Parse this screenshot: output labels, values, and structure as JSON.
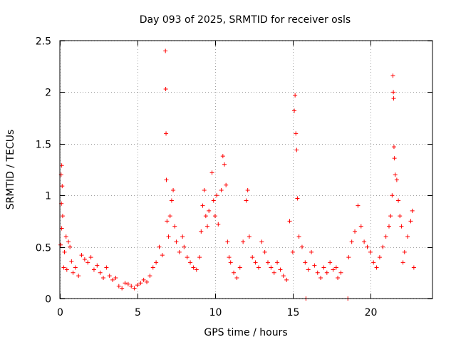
{
  "chart_data": {
    "type": "scatter",
    "title": "Day 093 of 2025, SRMTID for receiver osls",
    "xlabel": "GPS time / hours",
    "ylabel": "SRMTID / TECUs",
    "xlim": [
      0,
      24
    ],
    "ylim": [
      0,
      2.5
    ],
    "x_ticks": [
      0,
      5,
      10,
      15,
      20
    ],
    "x_tick_labels": [
      "0",
      "5",
      "10",
      "15",
      "20"
    ],
    "y_ticks": [
      0,
      0.5,
      1,
      1.5,
      2,
      2.5
    ],
    "y_tick_labels": [
      "0",
      "0.5",
      "1",
      "1.5",
      "2",
      "2.5"
    ],
    "grid": true,
    "marker": "+",
    "marker_color": "#ff0000",
    "series": [
      {
        "name": "SRMTID",
        "points": [
          [
            0.05,
            0.52
          ],
          [
            0.08,
            1.2
          ],
          [
            0.12,
            1.29
          ],
          [
            0.15,
            1.09
          ],
          [
            0.1,
            0.92
          ],
          [
            0.18,
            0.8
          ],
          [
            0.12,
            0.68
          ],
          [
            0.25,
            0.3
          ],
          [
            0.3,
            0.45
          ],
          [
            0.4,
            0.6
          ],
          [
            0.45,
            0.28
          ],
          [
            0.55,
            0.55
          ],
          [
            0.65,
            0.5
          ],
          [
            0.75,
            0.36
          ],
          [
            0.85,
            0.25
          ],
          [
            1.0,
            0.3
          ],
          [
            1.2,
            0.22
          ],
          [
            1.4,
            0.42
          ],
          [
            1.6,
            0.38
          ],
          [
            1.8,
            0.35
          ],
          [
            2.0,
            0.4
          ],
          [
            2.2,
            0.28
          ],
          [
            2.4,
            0.32
          ],
          [
            2.6,
            0.25
          ],
          [
            2.8,
            0.2
          ],
          [
            3.0,
            0.3
          ],
          [
            3.2,
            0.22
          ],
          [
            3.4,
            0.18
          ],
          [
            3.6,
            0.2
          ],
          [
            3.8,
            0.12
          ],
          [
            4.0,
            0.1
          ],
          [
            4.2,
            0.15
          ],
          [
            4.4,
            0.14
          ],
          [
            4.6,
            0.12
          ],
          [
            4.8,
            0.1
          ],
          [
            5.0,
            0.13
          ],
          [
            5.2,
            0.15
          ],
          [
            5.4,
            0.18
          ],
          [
            5.6,
            0.16
          ],
          [
            5.8,
            0.22
          ],
          [
            6.0,
            0.3
          ],
          [
            6.2,
            0.35
          ],
          [
            6.4,
            0.5
          ],
          [
            6.6,
            0.42
          ],
          [
            6.8,
            2.4
          ],
          [
            6.82,
            2.03
          ],
          [
            6.84,
            1.6
          ],
          [
            6.86,
            1.15
          ],
          [
            6.9,
            0.75
          ],
          [
            7.0,
            0.6
          ],
          [
            7.1,
            0.8
          ],
          [
            7.2,
            0.95
          ],
          [
            7.3,
            1.05
          ],
          [
            7.4,
            0.7
          ],
          [
            7.5,
            0.55
          ],
          [
            7.7,
            0.45
          ],
          [
            7.9,
            0.6
          ],
          [
            8.0,
            0.5
          ],
          [
            8.2,
            0.4
          ],
          [
            8.4,
            0.35
          ],
          [
            8.6,
            0.3
          ],
          [
            8.8,
            0.28
          ],
          [
            9.0,
            0.4
          ],
          [
            9.1,
            0.65
          ],
          [
            9.2,
            0.9
          ],
          [
            9.3,
            1.05
          ],
          [
            9.4,
            0.8
          ],
          [
            9.5,
            0.7
          ],
          [
            9.6,
            0.85
          ],
          [
            9.8,
            1.22
          ],
          [
            9.9,
            0.95
          ],
          [
            10.0,
            0.8
          ],
          [
            10.1,
            1.0
          ],
          [
            10.2,
            0.72
          ],
          [
            10.4,
            1.05
          ],
          [
            10.5,
            1.38
          ],
          [
            10.6,
            1.3
          ],
          [
            10.7,
            1.1
          ],
          [
            10.8,
            0.55
          ],
          [
            10.9,
            0.4
          ],
          [
            11.0,
            0.35
          ],
          [
            11.2,
            0.25
          ],
          [
            11.4,
            0.2
          ],
          [
            11.6,
            0.3
          ],
          [
            11.8,
            0.55
          ],
          [
            12.0,
            0.95
          ],
          [
            12.1,
            1.05
          ],
          [
            12.2,
            0.6
          ],
          [
            12.4,
            0.4
          ],
          [
            12.6,
            0.35
          ],
          [
            12.8,
            0.3
          ],
          [
            13.0,
            0.55
          ],
          [
            13.2,
            0.45
          ],
          [
            13.4,
            0.35
          ],
          [
            13.6,
            0.3
          ],
          [
            13.8,
            0.25
          ],
          [
            14.0,
            0.35
          ],
          [
            14.2,
            0.28
          ],
          [
            14.4,
            0.22
          ],
          [
            14.6,
            0.18
          ],
          [
            14.8,
            0.75
          ],
          [
            15.0,
            0.45
          ],
          [
            15.1,
            1.82
          ],
          [
            15.15,
            1.97
          ],
          [
            15.2,
            1.6
          ],
          [
            15.25,
            1.44
          ],
          [
            15.3,
            0.97
          ],
          [
            15.4,
            0.6
          ],
          [
            15.6,
            0.5
          ],
          [
            15.8,
            0.35
          ],
          [
            15.85,
            0.0
          ],
          [
            16.0,
            0.28
          ],
          [
            16.2,
            0.45
          ],
          [
            16.4,
            0.32
          ],
          [
            16.6,
            0.25
          ],
          [
            16.8,
            0.2
          ],
          [
            17.0,
            0.3
          ],
          [
            17.2,
            0.25
          ],
          [
            17.4,
            0.35
          ],
          [
            17.6,
            0.28
          ],
          [
            17.8,
            0.3
          ],
          [
            17.9,
            0.2
          ],
          [
            18.1,
            0.25
          ],
          [
            18.55,
            0.0
          ],
          [
            18.6,
            0.4
          ],
          [
            18.8,
            0.55
          ],
          [
            19.0,
            0.65
          ],
          [
            19.2,
            0.9
          ],
          [
            19.4,
            0.7
          ],
          [
            19.6,
            0.55
          ],
          [
            19.8,
            0.5
          ],
          [
            20.0,
            0.45
          ],
          [
            20.2,
            0.35
          ],
          [
            20.4,
            0.3
          ],
          [
            20.6,
            0.4
          ],
          [
            20.8,
            0.5
          ],
          [
            21.0,
            0.6
          ],
          [
            21.2,
            0.7
          ],
          [
            21.3,
            0.8
          ],
          [
            21.4,
            1.0
          ],
          [
            21.45,
            2.16
          ],
          [
            21.48,
            2.0
          ],
          [
            21.5,
            1.94
          ],
          [
            21.52,
            1.47
          ],
          [
            21.55,
            1.36
          ],
          [
            21.6,
            1.2
          ],
          [
            21.7,
            1.15
          ],
          [
            21.8,
            0.95
          ],
          [
            21.9,
            0.8
          ],
          [
            22.0,
            0.7
          ],
          [
            22.1,
            0.35
          ],
          [
            22.2,
            0.45
          ],
          [
            22.4,
            0.6
          ],
          [
            22.6,
            0.75
          ],
          [
            22.7,
            0.85
          ],
          [
            22.8,
            0.3
          ]
        ]
      }
    ]
  }
}
